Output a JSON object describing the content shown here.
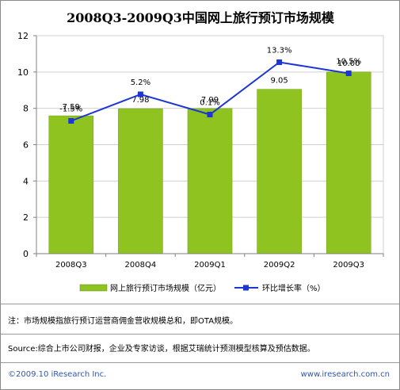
{
  "chart_data": {
    "type": "bar",
    "title": "2008Q3-2009Q3中国网上旅行预订市场规模",
    "categories": [
      "2008Q3",
      "2008Q4",
      "2009Q1",
      "2009Q2",
      "2009Q3"
    ],
    "ylim": [
      0,
      12
    ],
    "yticks": [
      0,
      2,
      4,
      6,
      8,
      10,
      12
    ],
    "grid": true,
    "legend_position": "bottom",
    "series": [
      {
        "name": "网上旅行预订市场规模（亿元）",
        "type": "bar",
        "color": "#8fc31f",
        "values": [
          7.59,
          7.98,
          7.99,
          9.05,
          10.0
        ],
        "labels": [
          "7.59",
          "7.98",
          "7.99",
          "9.05",
          "10.00"
        ]
      },
      {
        "name": "环比增长率（%）",
        "type": "line",
        "color": "#1b35d6",
        "values": [
          -1.5,
          5.2,
          0.1,
          13.3,
          10.5
        ],
        "labels": [
          "-1.5%",
          "5.2%",
          "0.1%",
          "13.3%",
          "10.5%"
        ]
      }
    ]
  },
  "note": "注：市场规模指旅行预订运营商佣金营收规模总和，即OTA规模。",
  "source": "Source:综合上市公司财报，企业及专家访谈，根据艾瑞统计预测模型核算及预估数据。",
  "footer": {
    "copyright": "©2009.10 iResearch Inc.",
    "website": "www.iresearch.com.cn"
  }
}
